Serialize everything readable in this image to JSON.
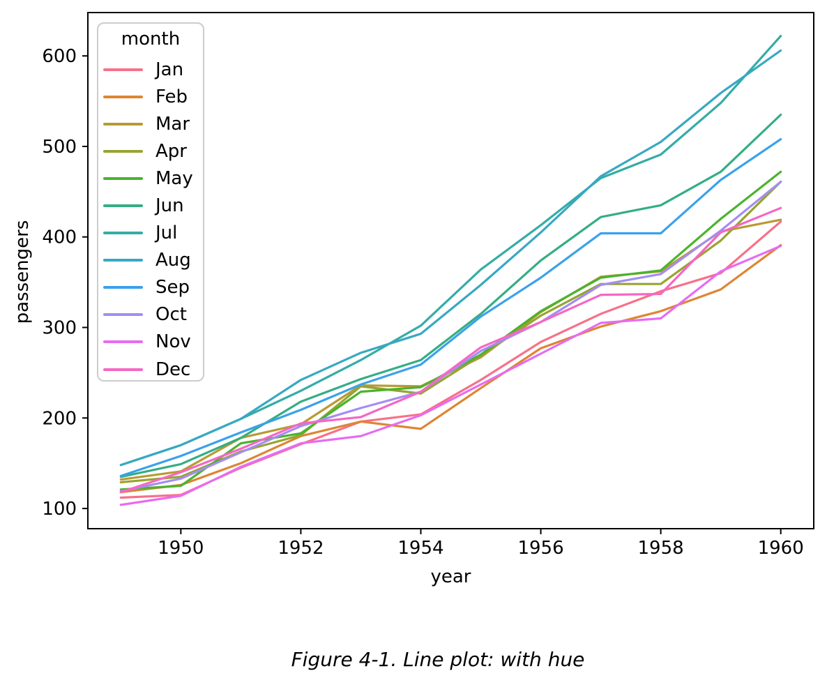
{
  "figure": {
    "caption": "Figure 4-1. Line plot: with hue"
  },
  "chart_data": {
    "type": "line",
    "title": "",
    "xlabel": "year",
    "ylabel": "passengers",
    "legend_title": "month",
    "legend_position": "upper left",
    "grid": false,
    "x": [
      1949,
      1950,
      1951,
      1952,
      1953,
      1954,
      1955,
      1956,
      1957,
      1958,
      1959,
      1960
    ],
    "xticks": [
      1950,
      1952,
      1954,
      1956,
      1958,
      1960
    ],
    "yticks": [
      100,
      200,
      300,
      400,
      500,
      600
    ],
    "xlim": [
      1948.45,
      1960.55
    ],
    "ylim": [
      77.7,
      647.9
    ],
    "series": [
      {
        "name": "Jan",
        "color": "#f77189",
        "values": [
          112,
          115,
          145,
          171,
          196,
          204,
          242,
          284,
          315,
          340,
          360,
          417
        ]
      },
      {
        "name": "Feb",
        "color": "#dd8633",
        "values": [
          118,
          126,
          150,
          180,
          196,
          188,
          233,
          277,
          301,
          318,
          342,
          391
        ]
      },
      {
        "name": "Mar",
        "color": "#b89a33",
        "values": [
          132,
          141,
          178,
          193,
          236,
          235,
          267,
          317,
          356,
          362,
          406,
          419
        ]
      },
      {
        "name": "Apr",
        "color": "#97a431",
        "values": [
          129,
          135,
          163,
          181,
          235,
          227,
          269,
          313,
          348,
          348,
          396,
          461
        ]
      },
      {
        "name": "May",
        "color": "#4bb32e",
        "values": [
          121,
          125,
          172,
          183,
          229,
          234,
          270,
          318,
          355,
          363,
          420,
          472
        ]
      },
      {
        "name": "Jun",
        "color": "#33ae83",
        "values": [
          135,
          149,
          178,
          218,
          243,
          264,
          315,
          374,
          422,
          435,
          472,
          535
        ]
      },
      {
        "name": "Jul",
        "color": "#35aca6",
        "values": [
          148,
          170,
          199,
          230,
          264,
          302,
          364,
          413,
          465,
          491,
          548,
          622
        ]
      },
      {
        "name": "Aug",
        "color": "#38a8c2",
        "values": [
          148,
          170,
          199,
          242,
          272,
          293,
          347,
          405,
          467,
          505,
          559,
          606
        ]
      },
      {
        "name": "Sep",
        "color": "#3aa1ec",
        "values": [
          136,
          158,
          184,
          209,
          237,
          259,
          312,
          355,
          404,
          404,
          463,
          508
        ]
      },
      {
        "name": "Oct",
        "color": "#a48df3",
        "values": [
          119,
          133,
          162,
          191,
          211,
          229,
          274,
          306,
          347,
          359,
          407,
          461
        ]
      },
      {
        "name": "Nov",
        "color": "#e76bf3",
        "values": [
          104,
          114,
          146,
          172,
          180,
          203,
          237,
          271,
          305,
          310,
          362,
          390
        ]
      },
      {
        "name": "Dec",
        "color": "#f667c3",
        "values": [
          118,
          140,
          166,
          194,
          201,
          229,
          278,
          306,
          336,
          337,
          405,
          432
        ]
      }
    ]
  }
}
